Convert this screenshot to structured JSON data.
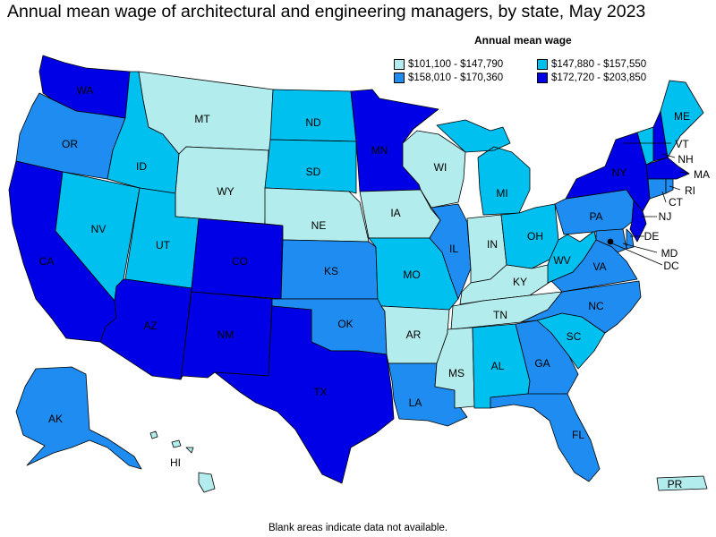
{
  "title": "Annual mean wage of architectural and engineering managers, by state, May 2023",
  "legend": {
    "title": "Annual mean wage",
    "items": [
      {
        "label": "$101,100 - $147,790",
        "color": "#b3ecec"
      },
      {
        "label": "$147,880 - $157,550",
        "color": "#00c0f0"
      },
      {
        "label": "$158,010 - $170,360",
        "color": "#1e8cf0"
      },
      {
        "label": "$172,720 - $203,850",
        "color": "#0000e6"
      }
    ]
  },
  "footnote": "Blank areas indicate data not available.",
  "states": {
    "WA": "WA",
    "OR": "OR",
    "CA": "CA",
    "NV": "NV",
    "ID": "ID",
    "MT": "MT",
    "WY": "WY",
    "UT": "UT",
    "AZ": "AZ",
    "CO": "CO",
    "NM": "NM",
    "ND": "ND",
    "SD": "SD",
    "NE": "NE",
    "KS": "KS",
    "OK": "OK",
    "TX": "TX",
    "MN": "MN",
    "IA": "IA",
    "MO": "MO",
    "AR": "AR",
    "LA": "LA",
    "WI": "WI",
    "IL": "IL",
    "MI": "MI",
    "IN": "IN",
    "OH": "OH",
    "KY": "KY",
    "TN": "TN",
    "MS": "MS",
    "AL": "AL",
    "GA": "GA",
    "FL": "FL",
    "SC": "SC",
    "NC": "NC",
    "VA": "VA",
    "WV": "WV",
    "PA": "PA",
    "NY": "NY",
    "ME": "ME",
    "VT": "VT",
    "NH": "NH",
    "MA": "MA",
    "RI": "RI",
    "CT": "CT",
    "NJ": "NJ",
    "DE": "DE",
    "MD": "MD",
    "DC": "DC",
    "AK": "AK",
    "HI": "HI",
    "PR": "PR"
  }
}
